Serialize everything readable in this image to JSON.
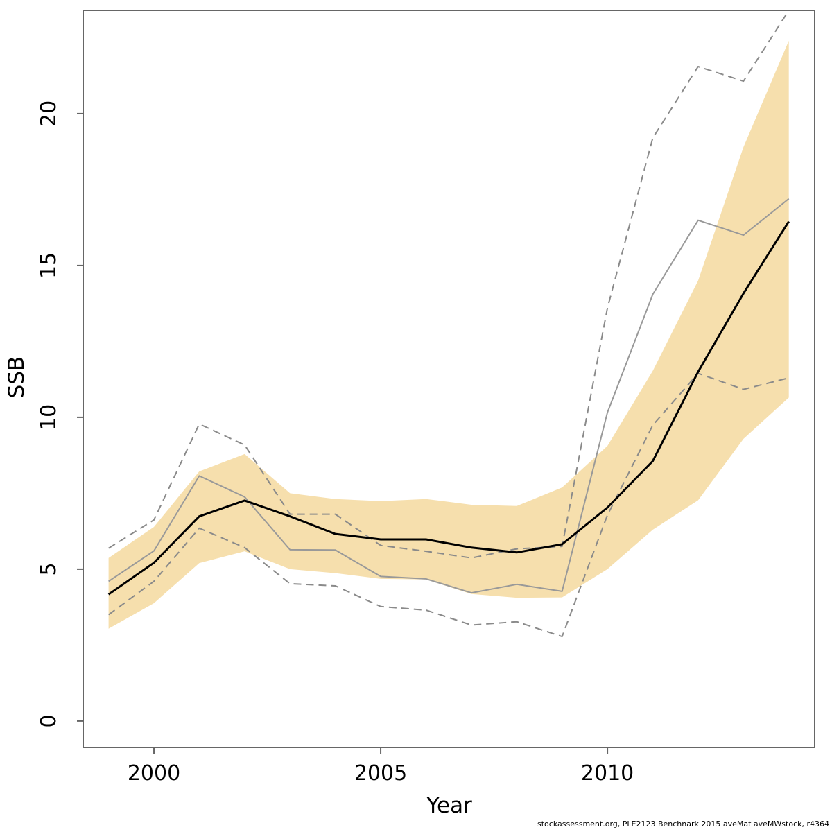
{
  "chart_data": {
    "type": "line",
    "title": "",
    "xlabel": "Year",
    "ylabel": "SSB",
    "footer": "stockassessment.org, PLE2123 Benchnark 2015 aveMat aveMWstock, r4364",
    "xlim": [
      1998.44,
      2014.57
    ],
    "ylim": [
      -0.87,
      23.4
    ],
    "grid": false,
    "legend": "none",
    "x": [
      1999,
      2000,
      2001,
      2002,
      2003,
      2004,
      2005,
      2006,
      2007,
      2008,
      2009,
      2010,
      2011,
      2012,
      2013,
      2014
    ],
    "series": [
      {
        "name": "ssb-current-estimate",
        "style": "solid-black",
        "color": "#000000",
        "values": [
          4.17,
          5.21,
          6.74,
          7.26,
          6.74,
          6.16,
          5.98,
          5.98,
          5.71,
          5.55,
          5.82,
          7.03,
          8.56,
          11.5,
          14.08,
          16.45
        ]
      },
      {
        "name": "ssb-previous-assessment",
        "style": "solid-gray",
        "color": "#999999",
        "values": [
          4.6,
          5.6,
          8.07,
          7.38,
          5.64,
          5.63,
          4.76,
          4.68,
          4.22,
          4.5,
          4.27,
          10.16,
          14.05,
          16.49,
          16.0,
          17.2
        ]
      },
      {
        "name": "ci-upper-dashed",
        "style": "dashed-gray",
        "color": "#8a8a8a",
        "values": [
          5.69,
          6.62,
          9.78,
          9.09,
          6.81,
          6.81,
          5.78,
          5.59,
          5.37,
          5.67,
          5.75,
          13.6,
          19.2,
          21.55,
          21.07,
          23.4
        ]
      },
      {
        "name": "ci-lower-dashed",
        "style": "dashed-gray",
        "color": "#8a8a8a",
        "values": [
          3.5,
          4.6,
          6.35,
          5.71,
          4.52,
          4.45,
          3.77,
          3.65,
          3.16,
          3.27,
          2.78,
          6.78,
          9.74,
          11.45,
          10.92,
          11.3
        ]
      }
    ],
    "band": {
      "name": "confidence-band",
      "color": "#f6dfad",
      "upper": [
        5.37,
        6.39,
        8.22,
        8.79,
        7.5,
        7.31,
        7.24,
        7.31,
        7.12,
        7.08,
        7.69,
        9.06,
        11.53,
        14.5,
        18.9,
        22.4
      ],
      "lower": [
        3.04,
        3.88,
        5.2,
        5.59,
        5.0,
        4.87,
        4.68,
        4.66,
        4.18,
        4.06,
        4.07,
        5.0,
        6.3,
        7.27,
        9.29,
        10.65
      ]
    },
    "x_ticks": [
      {
        "value": 2000,
        "label": "2000"
      },
      {
        "value": 2005,
        "label": "2005"
      },
      {
        "value": 2010,
        "label": "2010"
      }
    ],
    "y_ticks": [
      {
        "value": 0,
        "label": "0"
      },
      {
        "value": 5,
        "label": "5"
      },
      {
        "value": 10,
        "label": "10"
      },
      {
        "value": 15,
        "label": "15"
      },
      {
        "value": 20,
        "label": "20"
      }
    ]
  }
}
